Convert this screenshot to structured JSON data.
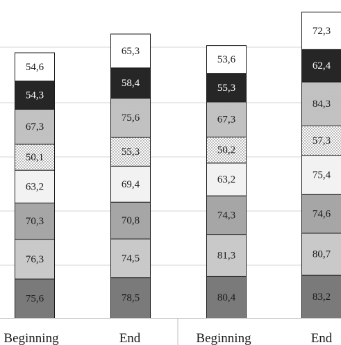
{
  "chart_data": {
    "type": "bar",
    "stacked": true,
    "grid": true,
    "categories": [
      "Beginning",
      "End",
      "Beginning",
      "End"
    ],
    "series": [
      {
        "values": [
          75.6,
          78.5,
          80.4,
          83.2
        ],
        "color": "#7a7a7a"
      },
      {
        "values": [
          76.3,
          74.5,
          81.3,
          80.7
        ],
        "color": "#c9c9c9"
      },
      {
        "values": [
          70.3,
          70.8,
          74.3,
          74.6
        ],
        "color": "#a6a6a6"
      },
      {
        "values": [
          63.2,
          69.4,
          63.2,
          75.4
        ],
        "color": "#f2f2f2"
      },
      {
        "values": [
          50.1,
          55.3,
          50.2,
          57.3
        ],
        "color": "#ffffff",
        "pattern": "sparse-dots"
      },
      {
        "values": [
          67.3,
          75.6,
          67.3,
          84.3
        ],
        "color": "#d9d9d9",
        "pattern": "dense-dots"
      },
      {
        "values": [
          54.3,
          58.4,
          55.3,
          62.4
        ],
        "color": "#262626"
      },
      {
        "values": [
          54.6,
          65.3,
          53.6,
          72.3
        ],
        "color": "#ffffff"
      }
    ],
    "labels": [
      [
        "75,6",
        "76,3",
        "70,3",
        "63,2",
        "50,1",
        "67,3",
        "54,3",
        "54,6"
      ],
      [
        "78,5",
        "74,5",
        "70,8",
        "69,4",
        "55,3",
        "75,6",
        "58,4",
        "65,3"
      ],
      [
        "80,4",
        "81,3",
        "74,3",
        "63,2",
        "50,2",
        "67,3",
        "55,3",
        "53,6"
      ],
      [
        "83,2",
        "80,7",
        "74,6",
        "75,4",
        "57,3",
        "84,3",
        "62,4",
        "72,3"
      ]
    ]
  }
}
